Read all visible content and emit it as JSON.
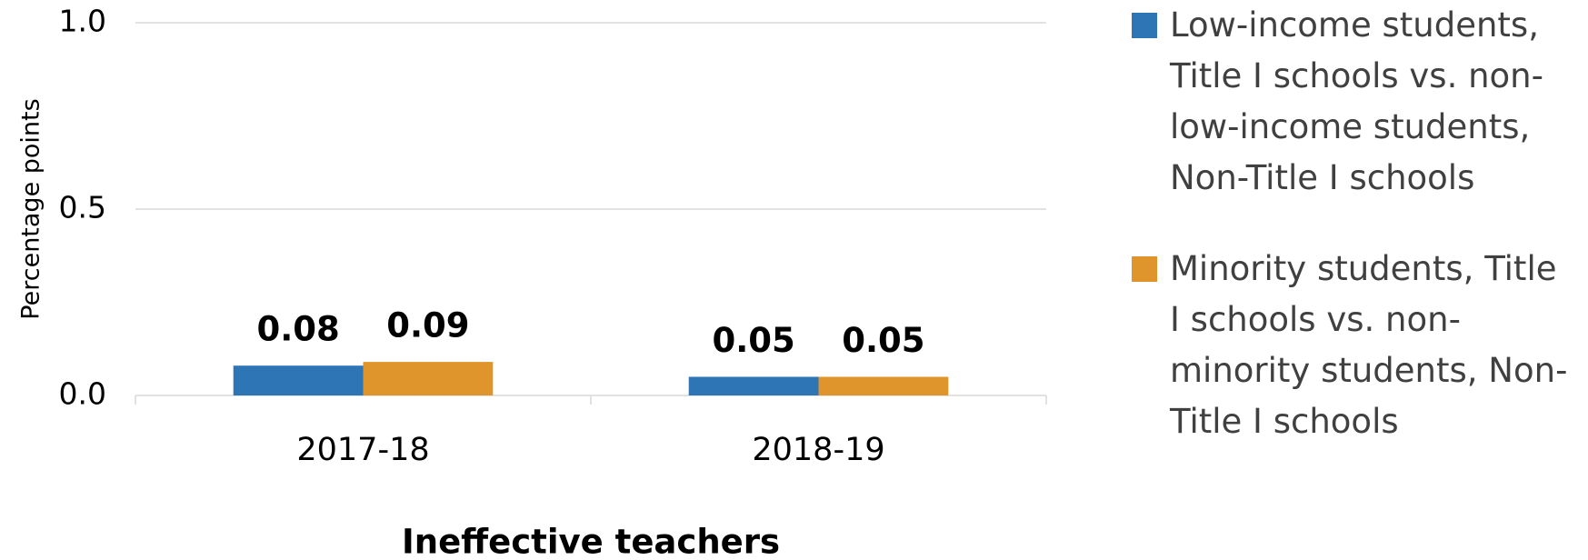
{
  "chart_data": {
    "type": "bar",
    "categories": [
      "2017-18",
      "2018-19"
    ],
    "series": [
      {
        "name": "Low-income students, Title I schools vs. non-low-income students, Non-Title I schools",
        "color": "#2e75b6",
        "values": [
          0.08,
          0.05
        ]
      },
      {
        "name": "Minority students, Title I schools vs. non-minority students, Non-Title I schools",
        "color": "#e0942c",
        "values": [
          0.09,
          0.05
        ]
      }
    ],
    "ylabel": "Percentage points",
    "xlabel": "Ineffective teachers",
    "ylim": [
      0,
      1
    ],
    "yticks": [
      {
        "value": 0,
        "label": "0.0"
      },
      {
        "value": 0.5,
        "label": "0.5"
      },
      {
        "value": 1,
        "label": "1.0"
      }
    ],
    "grid": true,
    "legend": "right"
  }
}
